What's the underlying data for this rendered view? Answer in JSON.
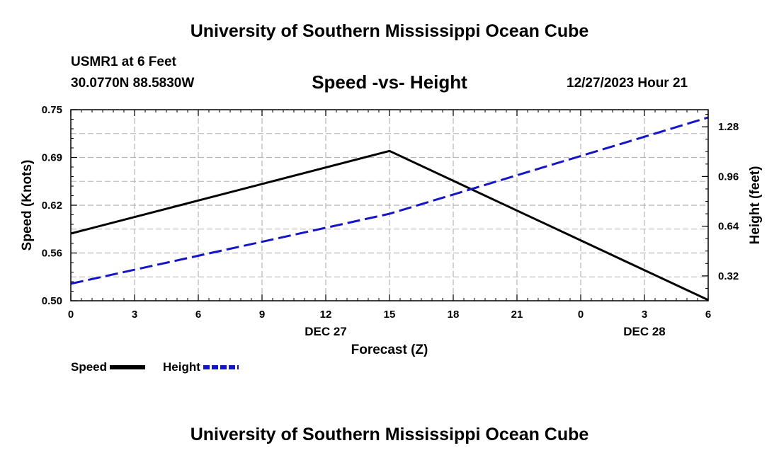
{
  "header": {
    "title": "University of Southern Mississippi Ocean Cube",
    "station": "USMR1 at 6 Feet",
    "coords": "30.0770N  88.5830W",
    "datetime": "12/27/2023 Hour 21"
  },
  "footer": {
    "title": "University of Southern Mississippi Ocean Cube"
  },
  "legend": {
    "speed_label": "Speed",
    "height_label": "Height"
  },
  "colors": {
    "speed": "#000000",
    "height": "#1515c8",
    "grid": "#b4b4b4"
  },
  "chart_data": {
    "type": "line",
    "title": "Speed -vs- Height",
    "xlabel": "Forecast (Z)",
    "ylabel": "Speed (Knots)",
    "y2label": "Height (feet)",
    "x": [
      0,
      15,
      30
    ],
    "x_tick_labels": [
      "0",
      "3",
      "6",
      "9",
      "12",
      "15",
      "18",
      "21",
      "0",
      "3",
      "6"
    ],
    "x_date_labels": [
      {
        "index": 4,
        "label": "DEC 27"
      },
      {
        "index": 9,
        "label": "DEC 28"
      }
    ],
    "ylim": [
      0.5,
      0.75
    ],
    "y_ticks": [
      "0.50",
      "0.56",
      "0.62",
      "0.69",
      "0.75"
    ],
    "y2lim": [
      0.16,
      1.39
    ],
    "y2_ticks": [
      "0.32",
      "0.64",
      "0.96",
      "1.28"
    ],
    "grid": true,
    "legend_position": "bottom-left",
    "series": [
      {
        "name": "Speed",
        "axis": "left",
        "style": "solid",
        "x": [
          0,
          15,
          30
        ],
        "values": [
          0.588,
          0.696,
          0.501
        ]
      },
      {
        "name": "Height",
        "axis": "right",
        "style": "dashed",
        "x": [
          0,
          15,
          30
        ],
        "values": [
          0.27,
          0.72,
          1.34
        ]
      }
    ]
  }
}
